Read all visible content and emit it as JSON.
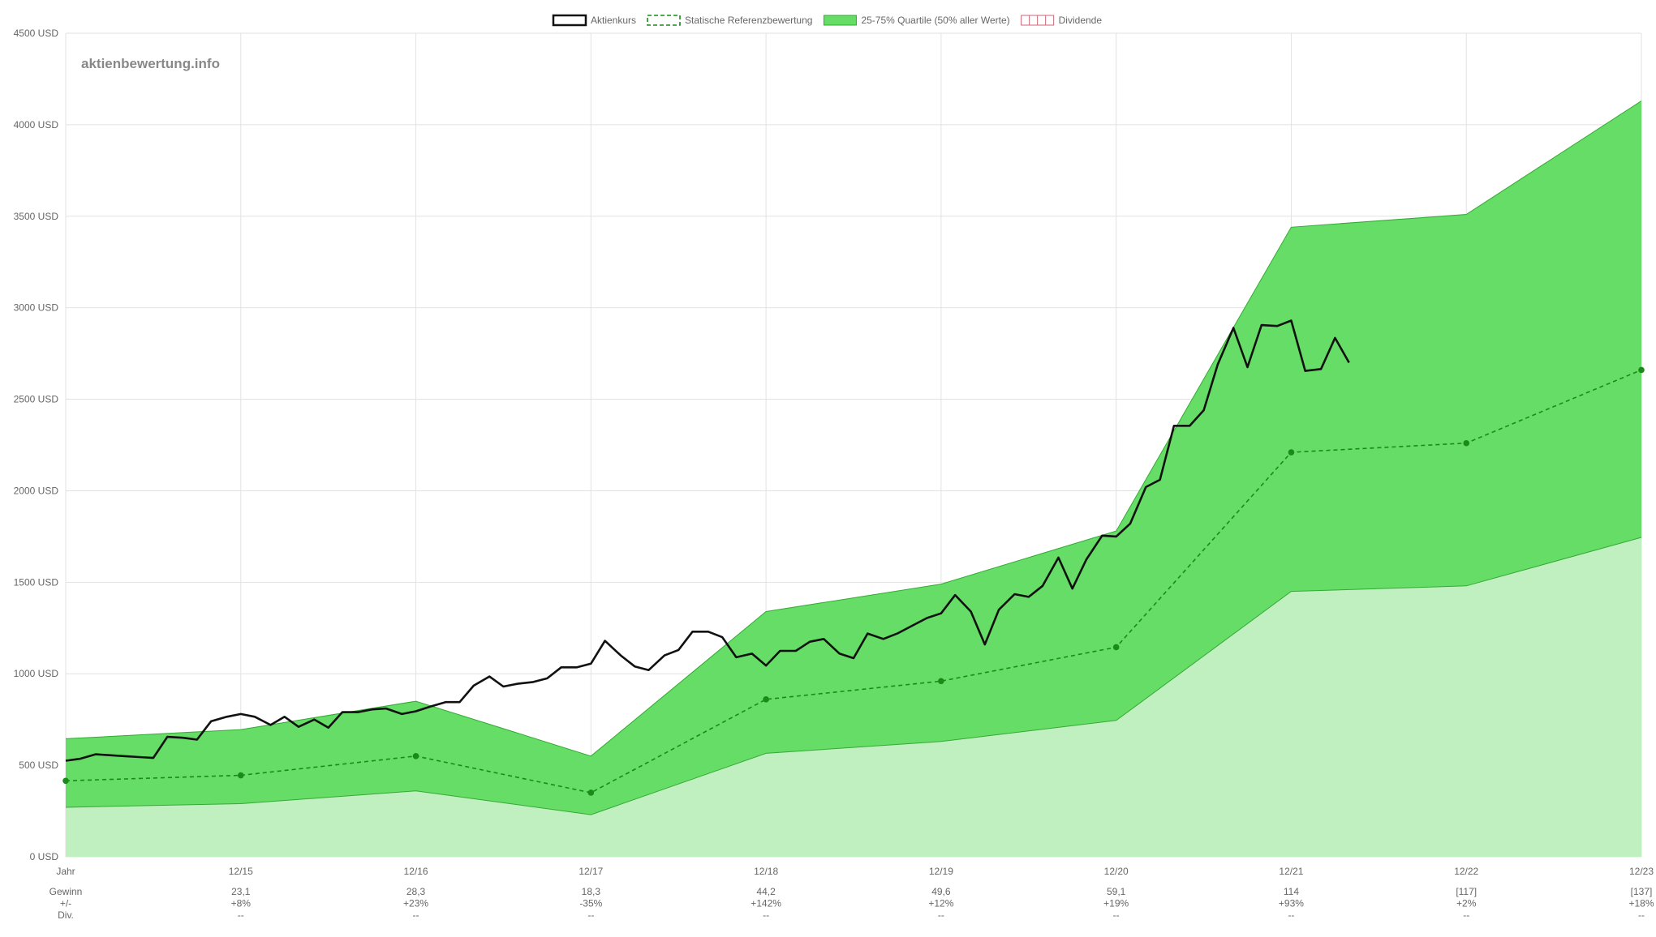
{
  "watermark": "aktienbewertung.info",
  "legend": [
    {
      "label": "Aktienkurs",
      "swatch": "line"
    },
    {
      "label": "Statische Referenzbewertung",
      "swatch": "dashed"
    },
    {
      "label": "25-75% Quartile (50% aller Werte)",
      "swatch": "fill"
    },
    {
      "label": "Dividende",
      "swatch": "bars"
    }
  ],
  "colors": {
    "price": "#111111",
    "reference": "#1a8a1a",
    "quartile_band": "#66dd66",
    "lower_band": "#c0f0c0",
    "dividend": "#cc6677",
    "grid": "#e2e2e2"
  },
  "chart_data": {
    "type": "area",
    "ylim": [
      0,
      4500
    ],
    "y_ticks": [
      "0 USD",
      "500 USD",
      "1000 USD",
      "1500 USD",
      "2000 USD",
      "2500 USD",
      "3000 USD",
      "3500 USD",
      "4000 USD",
      "4500 USD"
    ],
    "y_tick_values": [
      0,
      500,
      1000,
      1500,
      2000,
      2500,
      3000,
      3500,
      4000,
      4500
    ],
    "categories": [
      "Jahr",
      "12/15",
      "12/16",
      "12/17",
      "12/18",
      "12/19",
      "12/20",
      "12/21",
      "12/22",
      "12/23"
    ],
    "grid": true,
    "legend_position": "top-center",
    "series": [
      {
        "name": "Statische Referenzbewertung",
        "values": [
          415,
          445,
          550,
          350,
          860,
          960,
          1145,
          2210,
          2260,
          2660
        ]
      },
      {
        "name": "25-75% Quartile (50% aller Werte)",
        "lower": [
          270,
          290,
          360,
          230,
          565,
          630,
          745,
          1450,
          1480,
          1745
        ],
        "upper": [
          645,
          695,
          850,
          550,
          1340,
          1490,
          1780,
          3440,
          3510,
          4130
        ]
      }
    ],
    "price": {
      "name": "Aktienkurs",
      "x": [
        0,
        0.08,
        0.17,
        0.25,
        0.33,
        0.42,
        0.5,
        0.58,
        0.67,
        0.75,
        0.83,
        0.92,
        1.0,
        1.08,
        1.17,
        1.25,
        1.33,
        1.42,
        1.5,
        1.58,
        1.67,
        1.75,
        1.83,
        1.92,
        2.0,
        2.08,
        2.17,
        2.25,
        2.33,
        2.42,
        2.5,
        2.58,
        2.67,
        2.75,
        2.83,
        2.92,
        3.0,
        3.08,
        3.17,
        3.25,
        3.33,
        3.42,
        3.5,
        3.58,
        3.67,
        3.75,
        3.83,
        3.92,
        4.0,
        4.08,
        4.17,
        4.25,
        4.33,
        4.42,
        4.5,
        4.58,
        4.67,
        4.75,
        4.83,
        4.92,
        5.0,
        5.08,
        5.17,
        5.25,
        5.33,
        5.42,
        5.5,
        5.58,
        5.67,
        5.75,
        5.83,
        5.92,
        6.0,
        6.08,
        6.17,
        6.25,
        6.33,
        6.42,
        6.5,
        6.58,
        6.67,
        6.75,
        6.83,
        6.92,
        7.0,
        7.08,
        7.17,
        7.25,
        7.33
      ],
      "y": [
        525,
        535,
        560,
        555,
        550,
        545,
        540,
        655,
        650,
        640,
        740,
        765,
        780,
        765,
        720,
        765,
        710,
        750,
        705,
        790,
        790,
        805,
        810,
        780,
        795,
        820,
        845,
        845,
        935,
        985,
        930,
        945,
        955,
        975,
        1035,
        1035,
        1055,
        1180,
        1100,
        1040,
        1020,
        1100,
        1130,
        1230,
        1230,
        1200,
        1090,
        1110,
        1045,
        1125,
        1125,
        1175,
        1190,
        1110,
        1085,
        1220,
        1190,
        1220,
        1260,
        1305,
        1330,
        1430,
        1340,
        1160,
        1350,
        1435,
        1420,
        1480,
        1635,
        1465,
        1625,
        1755,
        1750,
        1820,
        2020,
        2060,
        2355,
        2355,
        2440,
        2690,
        2890,
        2675,
        2905,
        2900,
        2930,
        2655,
        2665,
        2835,
        2700
      ]
    },
    "table": {
      "rows": [
        {
          "label": "Gewinn",
          "values": [
            "23,1",
            "28,3",
            "18,3",
            "44,2",
            "49,6",
            "59,1",
            "114",
            "[117]",
            "[137]"
          ]
        },
        {
          "label": "+/-",
          "values": [
            "+8%",
            "+23%",
            "-35%",
            "+142%",
            "+12%",
            "+19%",
            "+93%",
            "+2%",
            "+18%"
          ]
        },
        {
          "label": "Div.",
          "values": [
            "--",
            "--",
            "--",
            "--",
            "--",
            "--",
            "--",
            "--",
            "--"
          ]
        }
      ]
    }
  }
}
